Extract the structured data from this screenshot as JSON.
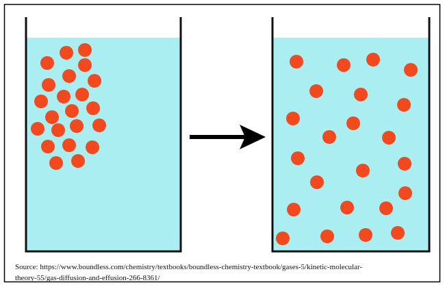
{
  "source": [
    "Source: https://www.boundless.com/chemistry/textbooks/boundless-chemistry-textbook/gases-5/kinetic-molecular-",
    "theory-55/gas-diffusion-and-effusion-266-8361/"
  ]
}
